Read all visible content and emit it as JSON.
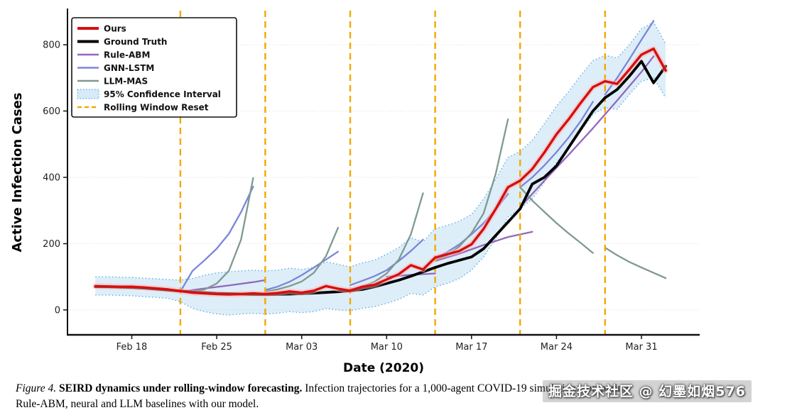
{
  "watermark": {
    "text": "掘金技术社区 @ 幻墨如烟576"
  },
  "caption": {
    "figure_label": "Figure 4.",
    "title_bold": "SEIRD dynamics under rolling-window forecasting.",
    "text_line1": "Infection trajectories for a 1,000-agent COVID-19 simulation, comparing",
    "text_line2": "Rule-ABM, neural and LLM baselines with our model."
  },
  "chart_data": {
    "type": "line",
    "title": "",
    "xlabel": "Date (2020)",
    "ylabel": "Active Infection Cases",
    "x_domain": [
      -2.3,
      49.8
    ],
    "ylim": [
      -75,
      905
    ],
    "yticks": [
      0,
      200,
      400,
      600,
      800
    ],
    "xticks": [
      {
        "day": 3,
        "label": "Feb 18"
      },
      {
        "day": 10,
        "label": "Feb 25"
      },
      {
        "day": 17,
        "label": "Mar 03"
      },
      {
        "day": 24,
        "label": "Mar 10"
      },
      {
        "day": 31,
        "label": "Mar 17"
      },
      {
        "day": 38,
        "label": "Mar 24"
      },
      {
        "day": 45,
        "label": "Mar 31"
      }
    ],
    "grid": "horizontal-dotted",
    "days": [
      0,
      1,
      2,
      3,
      4,
      5,
      6,
      7,
      8,
      9,
      10,
      11,
      12,
      13,
      14,
      15,
      16,
      17,
      18,
      19,
      20,
      21,
      22,
      23,
      24,
      25,
      26,
      27,
      28,
      29,
      30,
      31,
      32,
      33,
      34,
      35,
      36,
      37,
      38,
      39,
      40,
      41,
      42,
      43,
      44,
      45,
      46,
      47
    ],
    "reset": {
      "label": "Rolling Window Reset",
      "days": [
        7,
        14,
        21,
        28,
        35,
        42
      ],
      "color": "#f2a900"
    },
    "ci": {
      "name": "95% Confidence Interval",
      "fill": "#aed6f1",
      "fill_opacity": 0.42,
      "edge": "#5dade2",
      "lower": [
        45,
        45,
        44,
        43,
        40,
        38,
        35,
        25,
        5,
        -5,
        -12,
        -15,
        -12,
        -10,
        -12,
        -10,
        -5,
        -8,
        -5,
        5,
        0,
        -2,
        5,
        10,
        20,
        32,
        50,
        45,
        70,
        80,
        95,
        120,
        160,
        215,
        280,
        305,
        335,
        385,
        445,
        490,
        540,
        590,
        610,
        605,
        650,
        690,
        700,
        640
      ],
      "upper": [
        100,
        100,
        99,
        98,
        96,
        94,
        92,
        90,
        95,
        105,
        112,
        115,
        118,
        120,
        118,
        120,
        126,
        122,
        128,
        145,
        138,
        130,
        142,
        150,
        168,
        188,
        218,
        205,
        245,
        255,
        268,
        288,
        335,
        395,
        460,
        478,
        512,
        562,
        615,
        658,
        708,
        752,
        768,
        760,
        800,
        848,
        868,
        802
      ]
    },
    "series": [
      {
        "id": "ours",
        "name": "Ours",
        "color": "#d60f0f",
        "halo": "#ffb1b1",
        "width": 3.4,
        "y": [
          72,
          71,
          70,
          70,
          68,
          65,
          62,
          57,
          52,
          50,
          48,
          47,
          48,
          50,
          48,
          51,
          56,
          52,
          58,
          72,
          64,
          58,
          70,
          76,
          92,
          108,
          135,
          122,
          158,
          168,
          178,
          198,
          245,
          305,
          370,
          390,
          425,
          475,
          530,
          575,
          625,
          672,
          690,
          682,
          725,
          770,
          788,
          722
        ]
      },
      {
        "id": "ground_truth",
        "name": "Ground Truth",
        "color": "#000000",
        "width": 3.8,
        "y": [
          70,
          70,
          69,
          68,
          66,
          63,
          60,
          57,
          54,
          52,
          50,
          49,
          48,
          47,
          47,
          47,
          48,
          49,
          51,
          53,
          55,
          58,
          62,
          70,
          80,
          90,
          102,
          115,
          128,
          140,
          150,
          160,
          185,
          225,
          265,
          305,
          380,
          400,
          435,
          490,
          545,
          600,
          640,
          665,
          705,
          750,
          685,
          735
        ]
      },
      {
        "id": "rule_abm",
        "name": "Rule-ABM",
        "color": "#9467bd",
        "width": 2.3,
        "segments": [
          {
            "x": [
              7,
              9,
              11,
              13,
              14
            ],
            "y": [
              55,
              65,
              74,
              84,
              90
            ]
          },
          {
            "x": [
              24,
              25,
              26,
              27,
              28
            ],
            "y": [
              100,
              103,
              106,
              108,
              110
            ]
          },
          {
            "x": [
              28,
              30,
              32,
              34,
              36
            ],
            "y": [
              148,
              170,
              196,
              220,
              236
            ]
          },
          {
            "x": [
              35,
              37,
              39,
              41,
              43,
              45,
              46
            ],
            "y": [
              310,
              390,
              468,
              548,
              632,
              718,
              765
            ]
          }
        ]
      },
      {
        "id": "gnn_lstm",
        "name": "GNN-LSTM",
        "color": "#7b86d8",
        "width": 2.3,
        "segments": [
          {
            "x": [
              7,
              8,
              9,
              10,
              11,
              12,
              13
            ],
            "y": [
              55,
              118,
              150,
              185,
              230,
              295,
              372
            ]
          },
          {
            "x": [
              14,
              15,
              16,
              17,
              18,
              19,
              20
            ],
            "y": [
              60,
              70,
              85,
              105,
              128,
              152,
              176
            ]
          },
          {
            "x": [
              21,
              22,
              23,
              24,
              25,
              26,
              27
            ],
            "y": [
              75,
              88,
              102,
              120,
              148,
              178,
              212
            ]
          },
          {
            "x": [
              28,
              29,
              30,
              31,
              32,
              33,
              34
            ],
            "y": [
              155,
              175,
              198,
              228,
              262,
              304,
              350
            ]
          },
          {
            "x": [
              35,
              36,
              37,
              38,
              39,
              40,
              41
            ],
            "y": [
              370,
              400,
              436,
              476,
              520,
              570,
              628
            ]
          },
          {
            "x": [
              42,
              43,
              44,
              45,
              46
            ],
            "y": [
              650,
              700,
              756,
              815,
              872
            ]
          }
        ]
      },
      {
        "id": "llm_mas",
        "name": "LLM-MAS",
        "color": "#7f9a8f",
        "width": 2.3,
        "segments": [
          {
            "x": [
              8,
              9,
              10,
              11,
              12,
              13
            ],
            "y": [
              55,
              62,
              80,
              118,
              212,
              398
            ]
          },
          {
            "x": [
              14,
              15,
              16,
              17,
              18,
              19,
              20
            ],
            "y": [
              55,
              62,
              72,
              86,
              112,
              162,
              248
            ]
          },
          {
            "x": [
              21,
              22,
              23,
              24,
              25,
              26,
              27
            ],
            "y": [
              62,
              70,
              85,
              110,
              152,
              228,
              352
            ]
          },
          {
            "x": [
              28,
              29,
              30,
              31,
              32,
              33,
              34
            ],
            "y": [
              150,
              165,
              192,
              232,
              292,
              412,
              575
            ]
          },
          {
            "x": [
              35,
              36,
              37,
              38,
              39,
              40,
              41
            ],
            "y": [
              370,
              330,
              296,
              262,
              231,
              202,
              172
            ]
          },
          {
            "x": [
              42,
              43,
              44,
              45,
              46,
              47
            ],
            "y": [
              188,
              165,
              145,
              128,
              112,
              96
            ]
          }
        ]
      }
    ],
    "legend": {
      "position": "upper-left",
      "items": [
        {
          "label": "Ours",
          "swatch": "line",
          "color": "#d60f0f",
          "lw": 4
        },
        {
          "label": "Ground Truth",
          "swatch": "line",
          "color": "#000000",
          "lw": 4
        },
        {
          "label": "Rule-ABM",
          "swatch": "line",
          "color": "#9467bd",
          "lw": 2.5
        },
        {
          "label": "GNN-LSTM",
          "swatch": "line",
          "color": "#7b86d8",
          "lw": 2.5
        },
        {
          "label": "LLM-MAS",
          "swatch": "line",
          "color": "#7f9a8f",
          "lw": 2.5
        },
        {
          "label": "95% Confidence Interval",
          "swatch": "patch",
          "color": "#d6eaf8",
          "edge": "#5dade2"
        },
        {
          "label": "Rolling Window Reset",
          "swatch": "dashed",
          "color": "#f2a900",
          "lw": 2.5
        }
      ]
    }
  }
}
